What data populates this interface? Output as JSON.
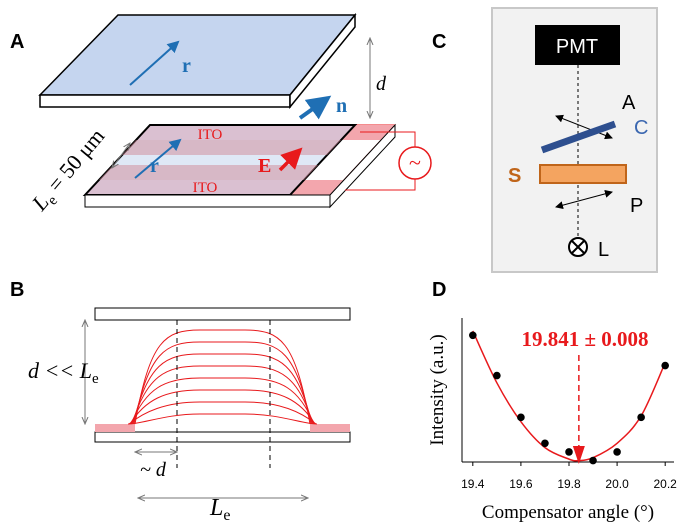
{
  "panels": {
    "A": {
      "label": "A",
      "r_top": "r",
      "n": "n",
      "d": "d",
      "ito_top": "ITO",
      "ito_bottom": "ITO",
      "r_bottom": "r",
      "E": "E",
      "L": "L",
      "L_sub": "e",
      "L_eq": " = 50 μm",
      "source": "~"
    },
    "B": {
      "label": "B",
      "d": "d << L",
      "d_sub": "e",
      "tilde_d": "~ d",
      "L": "L",
      "L_sub": "e"
    },
    "C": {
      "label": "C",
      "pmt": "PMT",
      "analyzer": "A",
      "compensator": "C",
      "sample": "S",
      "polarizer": "P",
      "laser": "L"
    },
    "D": {
      "label": "D"
    }
  },
  "chart_data": {
    "type": "scatter",
    "annotation": "19.841 ± 0.008",
    "marker_x": 19.841,
    "x_label": "Compensator angle (°)",
    "y_label": "Intensity (a.u.)",
    "x": [
      19.4,
      19.5,
      19.6,
      19.7,
      19.8,
      19.9,
      20.0,
      20.1,
      20.2
    ],
    "values": [
      8.8,
      6.0,
      3.1,
      1.3,
      0.7,
      0.1,
      0.7,
      3.1,
      6.7
    ],
    "color": "#000000",
    "fit": {
      "color": "#e8191c",
      "x": [
        19.4,
        19.5,
        19.6,
        19.7,
        19.8,
        19.841,
        19.9,
        20.0,
        20.1,
        20.2
      ],
      "values": [
        9.1,
        5.5,
        2.8,
        1.0,
        0.2,
        0.1,
        0.3,
        1.3,
        3.2,
        6.9
      ]
    },
    "xlim": [
      19.38,
      20.22
    ],
    "ylim": [
      0,
      10
    ],
    "xticks": [
      19.4,
      19.6,
      19.8,
      {
        "value": 20,
        "label": "20.0"
      },
      20.2
    ]
  }
}
